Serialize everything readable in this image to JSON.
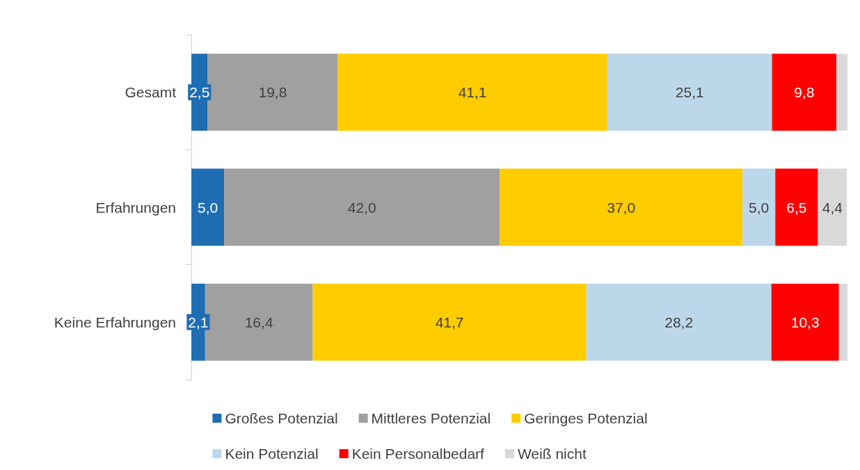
{
  "chart_data": {
    "type": "bar",
    "orientation": "horizontal",
    "stacked": true,
    "categories": [
      "Gesamt",
      "Erfahrungen",
      "Keine Erfahrungen"
    ],
    "series": [
      {
        "name": "Großes Potenzial",
        "color": "#1f6db3",
        "values": [
          2.5,
          5.0,
          2.1
        ],
        "value_labels": [
          "2,5",
          "5,0",
          "2,1"
        ]
      },
      {
        "name": "Mittleres Potenzial",
        "color": "#a0a0a0",
        "values": [
          19.8,
          42.0,
          16.4
        ],
        "value_labels": [
          "19,8",
          "42,0",
          "16,4"
        ]
      },
      {
        "name": "Geringes Potenzial",
        "color": "#ffcc00",
        "values": [
          41.1,
          37.0,
          41.7
        ],
        "value_labels": [
          "41,1",
          "37,0",
          "41,7"
        ]
      },
      {
        "name": "Kein Potenzial",
        "color": "#bdd7ea",
        "values": [
          25.1,
          5.0,
          28.2
        ],
        "value_labels": [
          "25,1",
          "5,0",
          "28,2"
        ]
      },
      {
        "name": "Kein Personalbedarf",
        "color": "#ff0000",
        "values": [
          9.8,
          6.5,
          10.3
        ],
        "value_labels": [
          "9,8",
          "6,5",
          "10,3"
        ]
      },
      {
        "name": "Weiß nicht",
        "color": "#d9d9d9",
        "values": [
          1.7,
          4.4,
          1.3
        ],
        "value_labels": [
          null,
          "4,4",
          null
        ]
      }
    ],
    "legend": "bottom"
  }
}
